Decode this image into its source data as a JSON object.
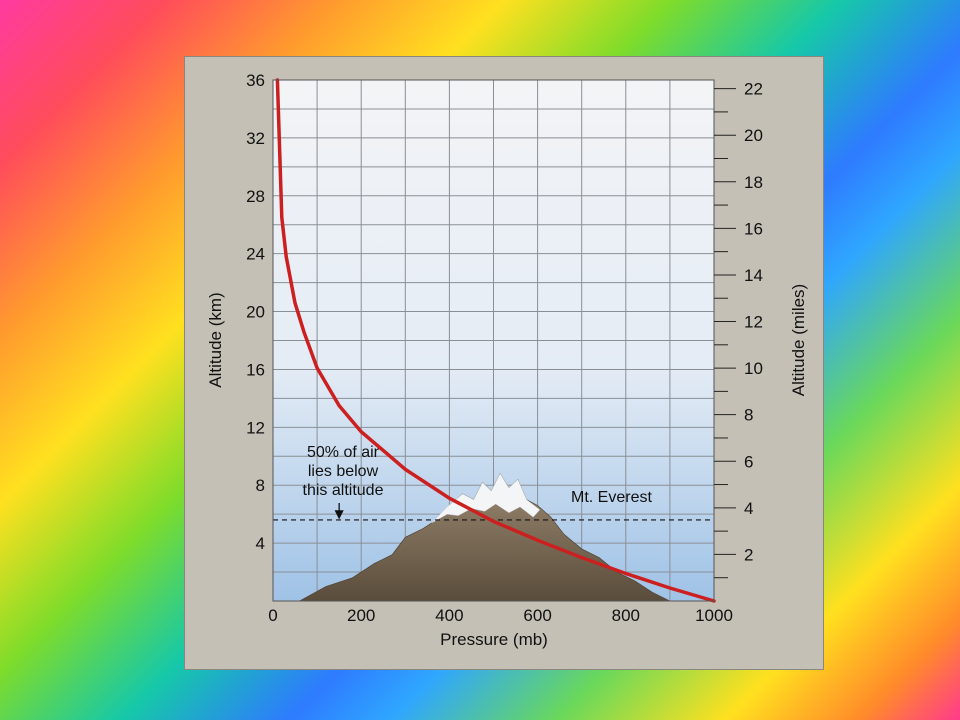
{
  "chart_data": {
    "type": "line",
    "xlabel": "Pressure (mb)",
    "ylabel": "Altitude (km)",
    "y2label": "Altitude (miles)",
    "xlim": [
      0,
      1000
    ],
    "ylim": [
      0,
      36
    ],
    "y2lim": [
      0,
      22.37
    ],
    "x_ticks": [
      0,
      200,
      400,
      600,
      800,
      1000
    ],
    "x_tick_labels": [
      "0",
      "200",
      "400",
      "600",
      "800",
      "1000"
    ],
    "y_ticks": [
      4,
      8,
      12,
      16,
      20,
      24,
      28,
      32,
      36
    ],
    "y_tick_labels": [
      "4",
      "8",
      "12",
      "16",
      "20",
      "24",
      "28",
      "32",
      "36"
    ],
    "y2_ticks": [
      2,
      4,
      6,
      8,
      10,
      12,
      14,
      16,
      18,
      20,
      22
    ],
    "y2_tick_labels": [
      "2",
      "4",
      "6",
      "8",
      "10",
      "12",
      "14",
      "16",
      "18",
      "20",
      "22"
    ],
    "grid": true,
    "series": [
      {
        "color": "#cc1f1f",
        "x": [
          1000,
          900,
          800,
          700,
          600,
          500,
          400,
          300,
          200,
          150,
          100,
          70,
          50,
          30,
          20,
          10
        ],
        "y": [
          0,
          0.9,
          1.9,
          3.0,
          4.2,
          5.5,
          7.1,
          9.1,
          11.7,
          13.5,
          16.1,
          18.6,
          20.6,
          23.8,
          26.5,
          36
        ]
      }
    ],
    "annotations": {
      "half_air_line": {
        "y": 5.6,
        "lines": [
          "50% of air",
          "lies below",
          "this altitude"
        ],
        "arrow_x": 150
      },
      "everest": {
        "label": "Mt. Everest",
        "peak_altitude": 8.8
      }
    },
    "colors": {
      "curve": "#cc1f1f",
      "sky_top": "#f3f4f6",
      "sky_bottom": "#a9c8e8",
      "grid": "#8a8f96"
    }
  }
}
